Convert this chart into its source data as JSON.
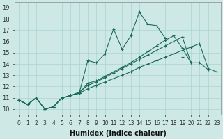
{
  "xlabel": "Humidex (Indice chaleur)",
  "xlim": [
    -0.5,
    23.5
  ],
  "ylim": [
    9.5,
    19.5
  ],
  "xticks": [
    0,
    1,
    2,
    3,
    4,
    5,
    6,
    7,
    8,
    9,
    10,
    11,
    12,
    13,
    14,
    15,
    16,
    17,
    18,
    19,
    20,
    21,
    22,
    23
  ],
  "yticks": [
    10,
    11,
    12,
    13,
    14,
    15,
    16,
    17,
    18,
    19
  ],
  "bg_color": "#cde8e5",
  "line_color": "#1a6b5a",
  "grid_color": "#aad4d0",
  "lines": [
    {
      "x": [
        0,
        1,
        2,
        3,
        4,
        5,
        6,
        7,
        8,
        9,
        10,
        11,
        12,
        13,
        14,
        15,
        16,
        17,
        18,
        19
      ],
      "y": [
        10.8,
        10.4,
        11.0,
        10.0,
        10.2,
        11.0,
        11.2,
        11.4,
        14.3,
        14.1,
        14.9,
        17.1,
        15.3,
        16.5,
        18.6,
        17.5,
        17.4,
        16.3,
        null,
        14.6
      ]
    },
    {
      "x": [
        0,
        1,
        2,
        3,
        4,
        5,
        6,
        7,
        8,
        9,
        10,
        11,
        12,
        13,
        14,
        15,
        16,
        17,
        18,
        19,
        20
      ],
      "y": [
        10.8,
        10.4,
        11.0,
        10.0,
        10.2,
        11.0,
        11.2,
        11.4,
        12.3,
        12.5,
        12.9,
        13.3,
        13.7,
        14.1,
        14.6,
        15.1,
        15.6,
        16.1,
        16.5,
        15.4,
        14.1
      ]
    },
    {
      "x": [
        0,
        1,
        2,
        3,
        4,
        5,
        6,
        7,
        8,
        9,
        10,
        11,
        12,
        13,
        14,
        15,
        16,
        17,
        18,
        19,
        20,
        21,
        22
      ],
      "y": [
        10.8,
        10.4,
        11.0,
        10.0,
        10.2,
        11.0,
        11.2,
        11.5,
        12.1,
        12.4,
        12.8,
        13.2,
        13.6,
        14.0,
        14.4,
        14.8,
        15.2,
        15.6,
        16.0,
        16.4,
        14.1,
        14.1,
        13.5
      ]
    },
    {
      "x": [
        0,
        1,
        2,
        3,
        4,
        5,
        6,
        7,
        8,
        9,
        10,
        11,
        12,
        13,
        14,
        15,
        16,
        17,
        18,
        19,
        20,
        21,
        22,
        23
      ],
      "y": [
        10.8,
        10.4,
        11.0,
        10.0,
        10.2,
        11.0,
        11.2,
        11.4,
        11.8,
        12.1,
        12.4,
        12.7,
        13.0,
        13.3,
        13.7,
        14.0,
        14.3,
        14.6,
        14.9,
        15.2,
        15.5,
        15.8,
        13.6,
        13.3
      ]
    }
  ]
}
